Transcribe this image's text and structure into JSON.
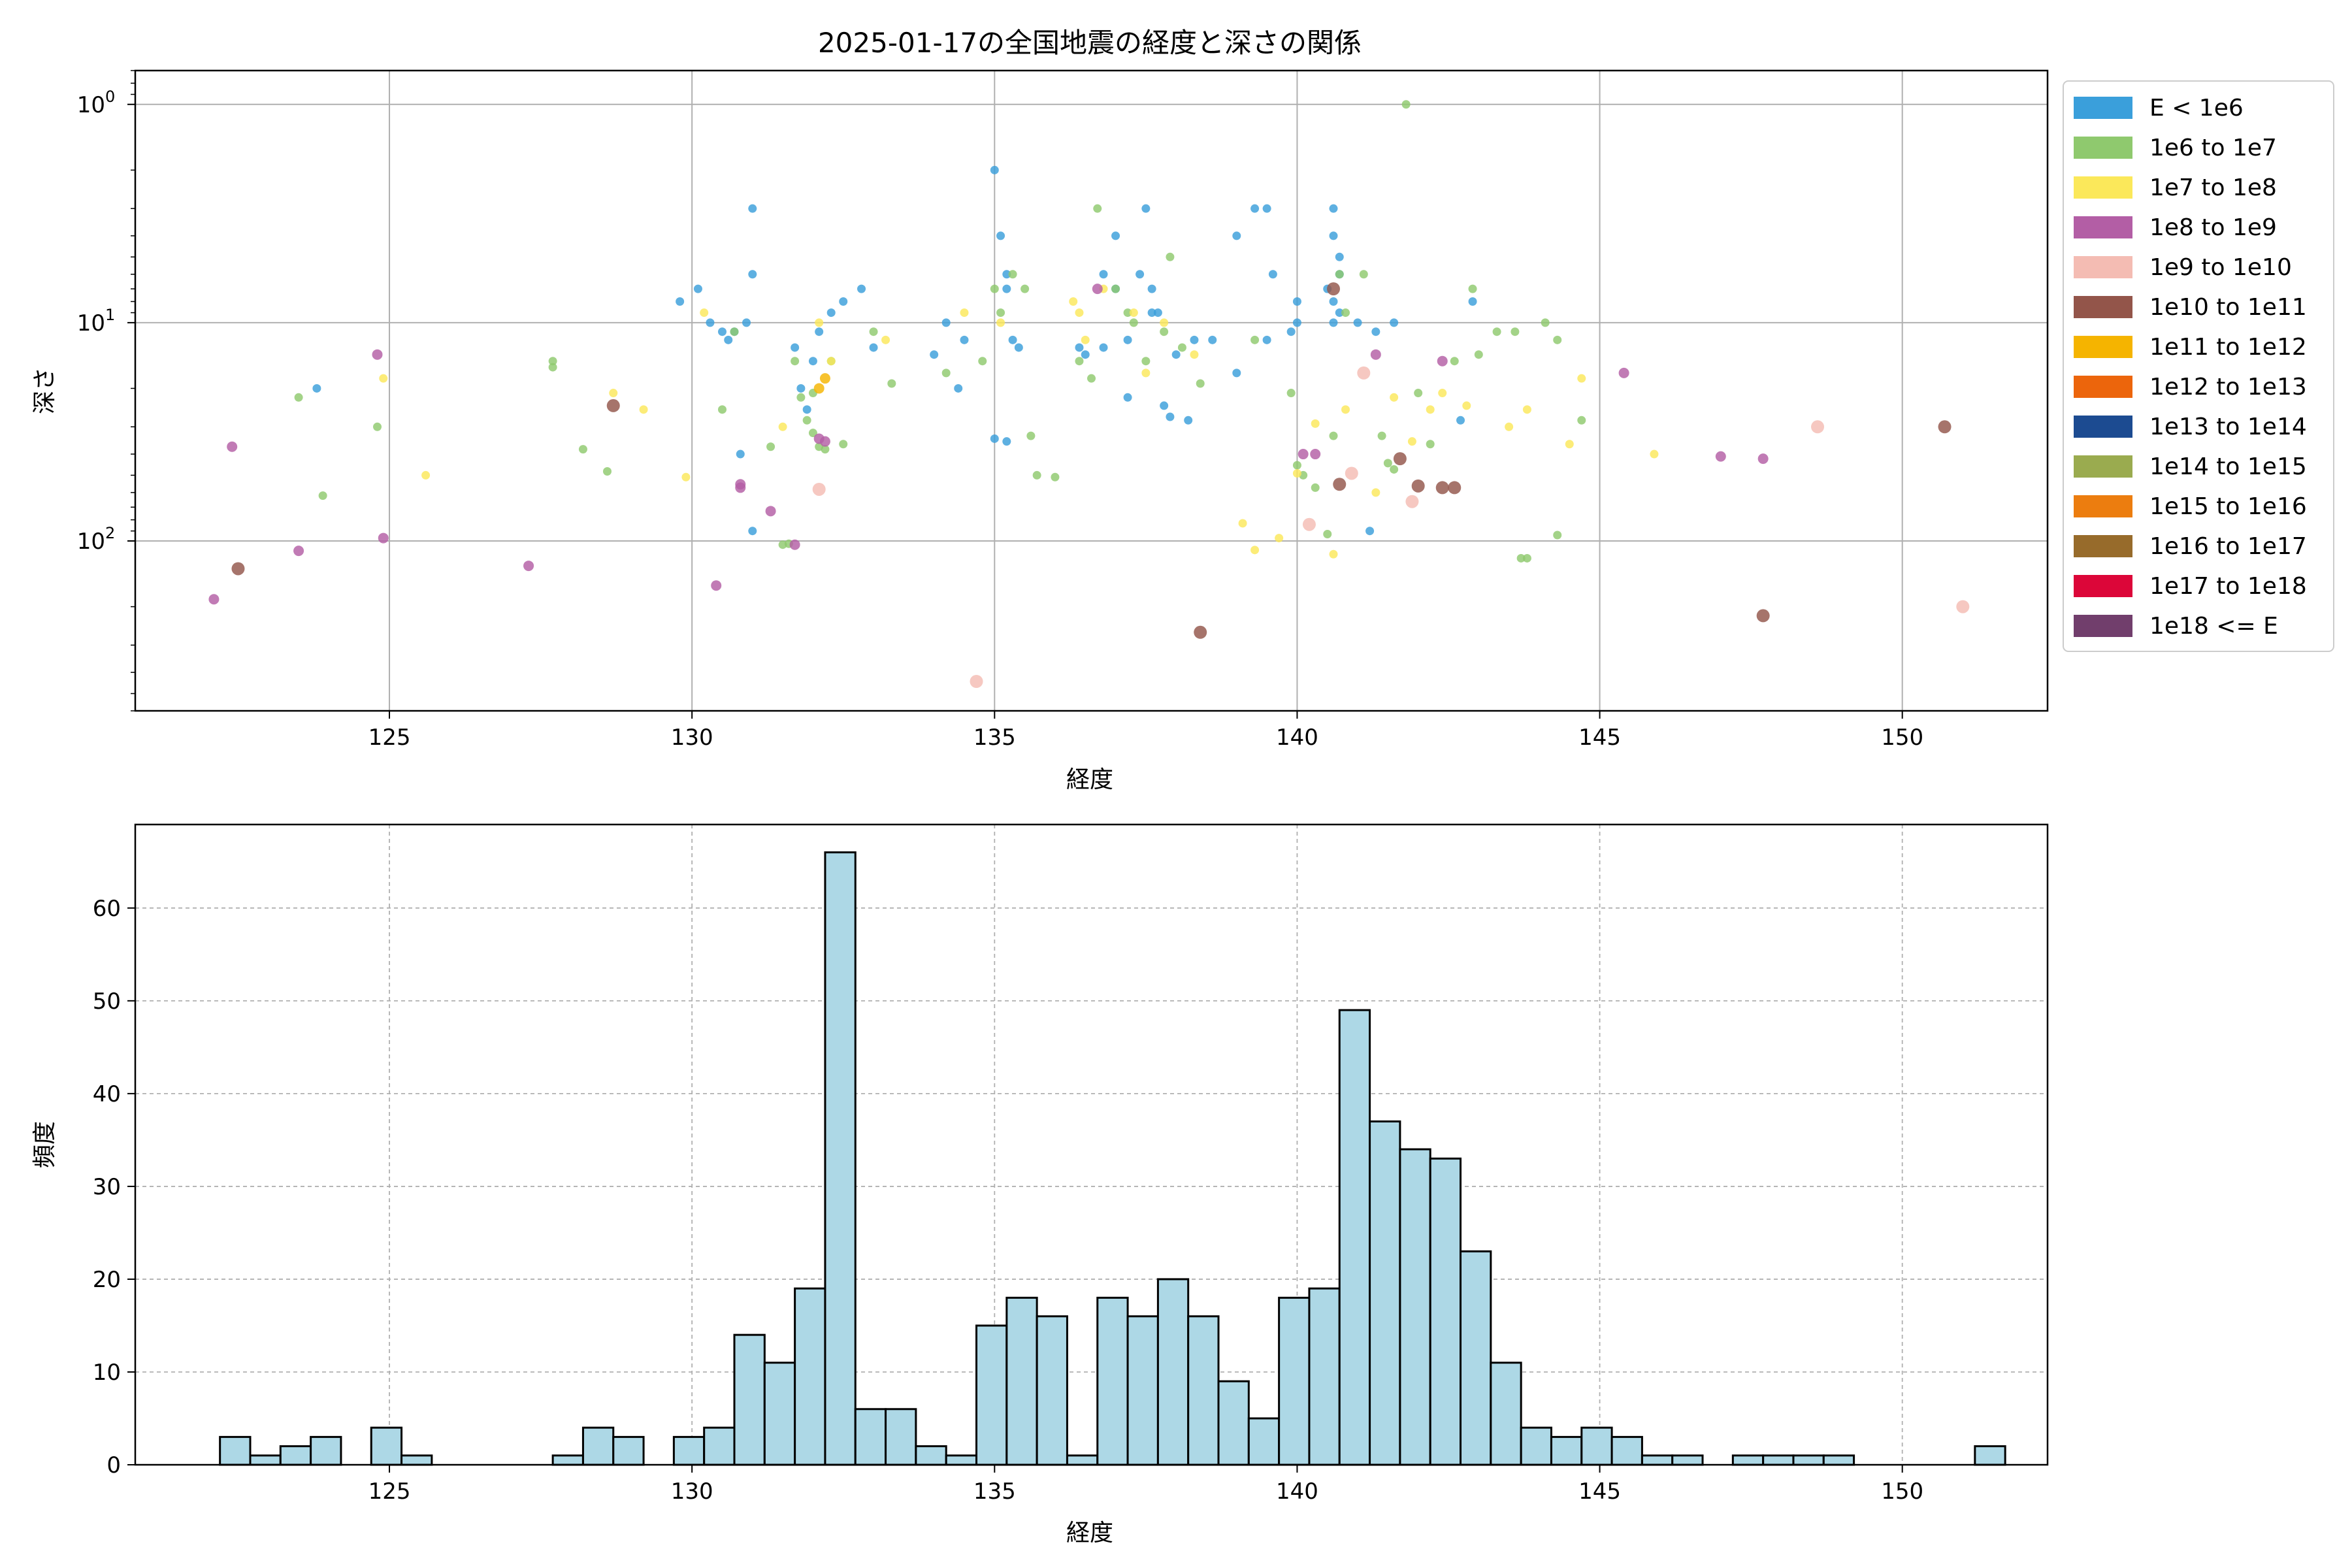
{
  "chart_data": [
    {
      "type": "scatter",
      "title": "2025-01-17の全国地震の経度と深さの関係",
      "xlabel": "経度",
      "ylabel": "深さ",
      "xlim": [
        120.8,
        152.4
      ],
      "ylim": [
        600,
        0.7
      ],
      "yscale": "log",
      "y_inverted": true,
      "xticks": [
        125,
        130,
        135,
        140,
        145,
        150
      ],
      "yticks": [
        1,
        10,
        100
      ],
      "ytick_labels": [
        "10^0",
        "10^1",
        "10^2"
      ],
      "grid": true,
      "legend_position": "outside-right-top",
      "legend": [
        {
          "label": "E < 1e6",
          "color": "#3a9fdb"
        },
        {
          "label": "1e6 to 1e7",
          "color": "#8fc96e"
        },
        {
          "label": "1e7 to 1e8",
          "color": "#fbe85a"
        },
        {
          "label": "1e8 to 1e9",
          "color": "#b35ea5"
        },
        {
          "label": "1e9 to 1e10",
          "color": "#f4bcb3"
        },
        {
          "label": "1e10 to 1e11",
          "color": "#93554a"
        },
        {
          "label": "1e11 to 1e12",
          "color": "#f5b400"
        },
        {
          "label": "1e12 to 1e13",
          "color": "#ec650c"
        },
        {
          "label": "1e13 to 1e14",
          "color": "#1c4b91"
        },
        {
          "label": "1e14 to 1e15",
          "color": "#9aab4f"
        },
        {
          "label": "1e15 to 1e16",
          "color": "#ec7d0f"
        },
        {
          "label": "1e16 to 1e17",
          "color": "#976b2b"
        },
        {
          "label": "1e17 to 1e18",
          "color": "#dc0639"
        },
        {
          "label": "1e18 <= E",
          "color": "#713e6c"
        }
      ],
      "series": [
        {
          "label": "E < 1e6",
          "points": [
            [
              123.8,
              20
            ],
            [
              129.8,
              8
            ],
            [
              130.1,
              7
            ],
            [
              130.3,
              10
            ],
            [
              130.5,
              11
            ],
            [
              130.6,
              12
            ],
            [
              130.7,
              11
            ],
            [
              130.9,
              10
            ],
            [
              131.0,
              6
            ],
            [
              131.0,
              3
            ],
            [
              131.0,
              90
            ],
            [
              130.8,
              40
            ],
            [
              131.7,
              13
            ],
            [
              131.8,
              20
            ],
            [
              132.0,
              15
            ],
            [
              131.9,
              25
            ],
            [
              132.1,
              11
            ],
            [
              132.3,
              9
            ],
            [
              132.5,
              8
            ],
            [
              132.8,
              7
            ],
            [
              133.0,
              13
            ],
            [
              134.0,
              14
            ],
            [
              134.2,
              10
            ],
            [
              134.4,
              20
            ],
            [
              134.5,
              12
            ],
            [
              135.0,
              2
            ],
            [
              135.1,
              4
            ],
            [
              135.2,
              6
            ],
            [
              135.2,
              7
            ],
            [
              135.3,
              12
            ],
            [
              135.4,
              13
            ],
            [
              135.0,
              34
            ],
            [
              135.2,
              35
            ],
            [
              136.4,
              13
            ],
            [
              136.5,
              14
            ],
            [
              136.8,
              6
            ],
            [
              137.0,
              4
            ],
            [
              137.2,
              22
            ],
            [
              137.6,
              9
            ],
            [
              137.4,
              6
            ],
            [
              137.5,
              3
            ],
            [
              137.6,
              7
            ],
            [
              137.7,
              9
            ],
            [
              137.8,
              24
            ],
            [
              137.9,
              27
            ],
            [
              138.0,
              14
            ],
            [
              138.2,
              28
            ],
            [
              138.3,
              12
            ],
            [
              138.6,
              12
            ],
            [
              139.0,
              17
            ],
            [
              139.0,
              4
            ],
            [
              139.3,
              3
            ],
            [
              139.5,
              3
            ],
            [
              139.6,
              6
            ],
            [
              139.5,
              12
            ],
            [
              139.9,
              11
            ],
            [
              140.0,
              8
            ],
            [
              140.0,
              10
            ],
            [
              140.6,
              3
            ],
            [
              140.6,
              4
            ],
            [
              140.7,
              5
            ],
            [
              140.7,
              6
            ],
            [
              140.5,
              7
            ],
            [
              140.6,
              8
            ],
            [
              140.7,
              9
            ],
            [
              140.6,
              10
            ],
            [
              141.0,
              10
            ],
            [
              141.3,
              11
            ],
            [
              141.6,
              10
            ],
            [
              141.2,
              90
            ],
            [
              142.7,
              28
            ],
            [
              142.9,
              8
            ],
            [
              137.0,
              7
            ],
            [
              136.8,
              13
            ],
            [
              137.2,
              12
            ]
          ]
        },
        {
          "label": "1e6 to 1e7",
          "points": [
            [
              123.5,
              22
            ],
            [
              123.9,
              62
            ],
            [
              124.8,
              30
            ],
            [
              127.7,
              16
            ],
            [
              127.7,
              15
            ],
            [
              128.2,
              38
            ],
            [
              128.6,
              48
            ],
            [
              130.5,
              25
            ],
            [
              130.7,
              11
            ],
            [
              131.3,
              37
            ],
            [
              131.5,
              104
            ],
            [
              131.6,
              103
            ],
            [
              131.7,
              15
            ],
            [
              131.8,
              22
            ],
            [
              131.9,
              28
            ],
            [
              132.0,
              32
            ],
            [
              132.1,
              37
            ],
            [
              132.2,
              38
            ],
            [
              132.0,
              21
            ],
            [
              132.3,
              15
            ],
            [
              132.5,
              36
            ],
            [
              133.0,
              11
            ],
            [
              133.3,
              19
            ],
            [
              134.2,
              17
            ],
            [
              134.8,
              15
            ],
            [
              135.0,
              7
            ],
            [
              135.1,
              9
            ],
            [
              135.3,
              6
            ],
            [
              135.5,
              7
            ],
            [
              135.6,
              33
            ],
            [
              135.7,
              50
            ],
            [
              136.0,
              51
            ],
            [
              136.4,
              15
            ],
            [
              136.6,
              18
            ],
            [
              136.7,
              3
            ],
            [
              137.0,
              7
            ],
            [
              137.2,
              9
            ],
            [
              137.3,
              10
            ],
            [
              137.5,
              15
            ],
            [
              137.8,
              11
            ],
            [
              137.9,
              5
            ],
            [
              138.1,
              13
            ],
            [
              138.4,
              19
            ],
            [
              139.3,
              12
            ],
            [
              139.9,
              21
            ],
            [
              140.0,
              45
            ],
            [
              140.1,
              50
            ],
            [
              140.3,
              57
            ],
            [
              140.5,
              93
            ],
            [
              140.6,
              33
            ],
            [
              140.7,
              6
            ],
            [
              140.8,
              9
            ],
            [
              141.1,
              6
            ],
            [
              141.4,
              33
            ],
            [
              141.5,
              44
            ],
            [
              141.6,
              47
            ],
            [
              141.8,
              1
            ],
            [
              142.0,
              21
            ],
            [
              142.2,
              36
            ],
            [
              142.6,
              15
            ],
            [
              142.9,
              7
            ],
            [
              143.0,
              14
            ],
            [
              143.3,
              11
            ],
            [
              143.6,
              11
            ],
            [
              143.7,
              120
            ],
            [
              143.8,
              120
            ],
            [
              144.1,
              10
            ],
            [
              144.3,
              12
            ],
            [
              144.7,
              28
            ],
            [
              144.3,
              94
            ]
          ]
        },
        {
          "label": "1e7 to 1e8",
          "points": [
            [
              124.9,
              18
            ],
            [
              125.6,
              50
            ],
            [
              128.7,
              21
            ],
            [
              129.2,
              25
            ],
            [
              129.9,
              51
            ],
            [
              130.2,
              9
            ],
            [
              131.5,
              30
            ],
            [
              132.1,
              10
            ],
            [
              132.3,
              15
            ],
            [
              133.2,
              12
            ],
            [
              134.5,
              9
            ],
            [
              135.1,
              10
            ],
            [
              136.3,
              8
            ],
            [
              136.4,
              9
            ],
            [
              136.5,
              12
            ],
            [
              136.8,
              7
            ],
            [
              137.3,
              9
            ],
            [
              137.5,
              17
            ],
            [
              137.8,
              10
            ],
            [
              138.3,
              14
            ],
            [
              139.1,
              83
            ],
            [
              139.3,
              110
            ],
            [
              139.7,
              97
            ],
            [
              140.0,
              49
            ],
            [
              140.3,
              29
            ],
            [
              140.6,
              115
            ],
            [
              140.8,
              25
            ],
            [
              141.3,
              60
            ],
            [
              141.6,
              22
            ],
            [
              141.9,
              35
            ],
            [
              142.2,
              25
            ],
            [
              142.4,
              21
            ],
            [
              142.8,
              24
            ],
            [
              143.5,
              30
            ],
            [
              143.8,
              25
            ],
            [
              144.5,
              36
            ],
            [
              144.7,
              18
            ],
            [
              145.9,
              40
            ]
          ]
        },
        {
          "label": "1e8 to 1e9",
          "points": [
            [
              122.1,
              185
            ],
            [
              122.4,
              37
            ],
            [
              123.5,
              111
            ],
            [
              124.8,
              14
            ],
            [
              124.9,
              97
            ],
            [
              127.3,
              130
            ],
            [
              130.4,
              160
            ],
            [
              130.8,
              57
            ],
            [
              130.8,
              55
            ],
            [
              131.3,
              73
            ],
            [
              131.7,
              104
            ],
            [
              132.1,
              34
            ],
            [
              132.2,
              35
            ],
            [
              136.7,
              7
            ],
            [
              140.1,
              40
            ],
            [
              140.3,
              40
            ],
            [
              141.3,
              14
            ],
            [
              142.4,
              15
            ],
            [
              145.4,
              17
            ],
            [
              147.0,
              41
            ],
            [
              147.7,
              42
            ]
          ]
        },
        {
          "label": "1e9 to 1e10",
          "points": [
            [
              132.1,
              58
            ],
            [
              134.7,
              440
            ],
            [
              140.2,
              84
            ],
            [
              140.9,
              49
            ],
            [
              141.1,
              17
            ],
            [
              141.9,
              66
            ],
            [
              148.6,
              30
            ],
            [
              151.0,
              200
            ]
          ]
        },
        {
          "label": "1e10 to 1e11",
          "points": [
            [
              122.5,
              134
            ],
            [
              128.7,
              24
            ],
            [
              138.4,
              262
            ],
            [
              140.6,
              7
            ],
            [
              140.7,
              55
            ],
            [
              141.7,
              42
            ],
            [
              142.0,
              56
            ],
            [
              142.4,
              57
            ],
            [
              142.6,
              57
            ],
            [
              147.7,
              220
            ],
            [
              150.7,
              30
            ]
          ]
        },
        {
          "label": "1e11 to 1e12",
          "points": [
            [
              132.1,
              20
            ],
            [
              132.2,
              18
            ]
          ]
        }
      ]
    },
    {
      "type": "bar",
      "subtype": "histogram",
      "xlabel": "経度",
      "ylabel": "頻度",
      "xlim": [
        120.8,
        152.4
      ],
      "ylim": [
        0,
        69
      ],
      "xticks": [
        125,
        130,
        135,
        140,
        145,
        150
      ],
      "yticks": [
        0,
        10,
        20,
        30,
        40,
        50,
        60
      ],
      "grid": true,
      "bar_color": "#add8e6",
      "bar_edge_color": "#000000",
      "bin_start": 122.2,
      "bin_width": 0.5,
      "values": [
        3,
        1,
        2,
        3,
        0,
        4,
        1,
        0,
        0,
        0,
        0,
        1,
        4,
        3,
        0,
        3,
        4,
        14,
        11,
        19,
        66,
        6,
        6,
        2,
        1,
        15,
        18,
        16,
        1,
        18,
        16,
        20,
        16,
        9,
        5,
        18,
        19,
        49,
        37,
        34,
        33,
        23,
        11,
        4,
        3,
        4,
        3,
        1,
        1,
        0,
        1,
        1,
        1,
        1,
        0,
        0,
        0,
        0,
        2
      ]
    }
  ]
}
